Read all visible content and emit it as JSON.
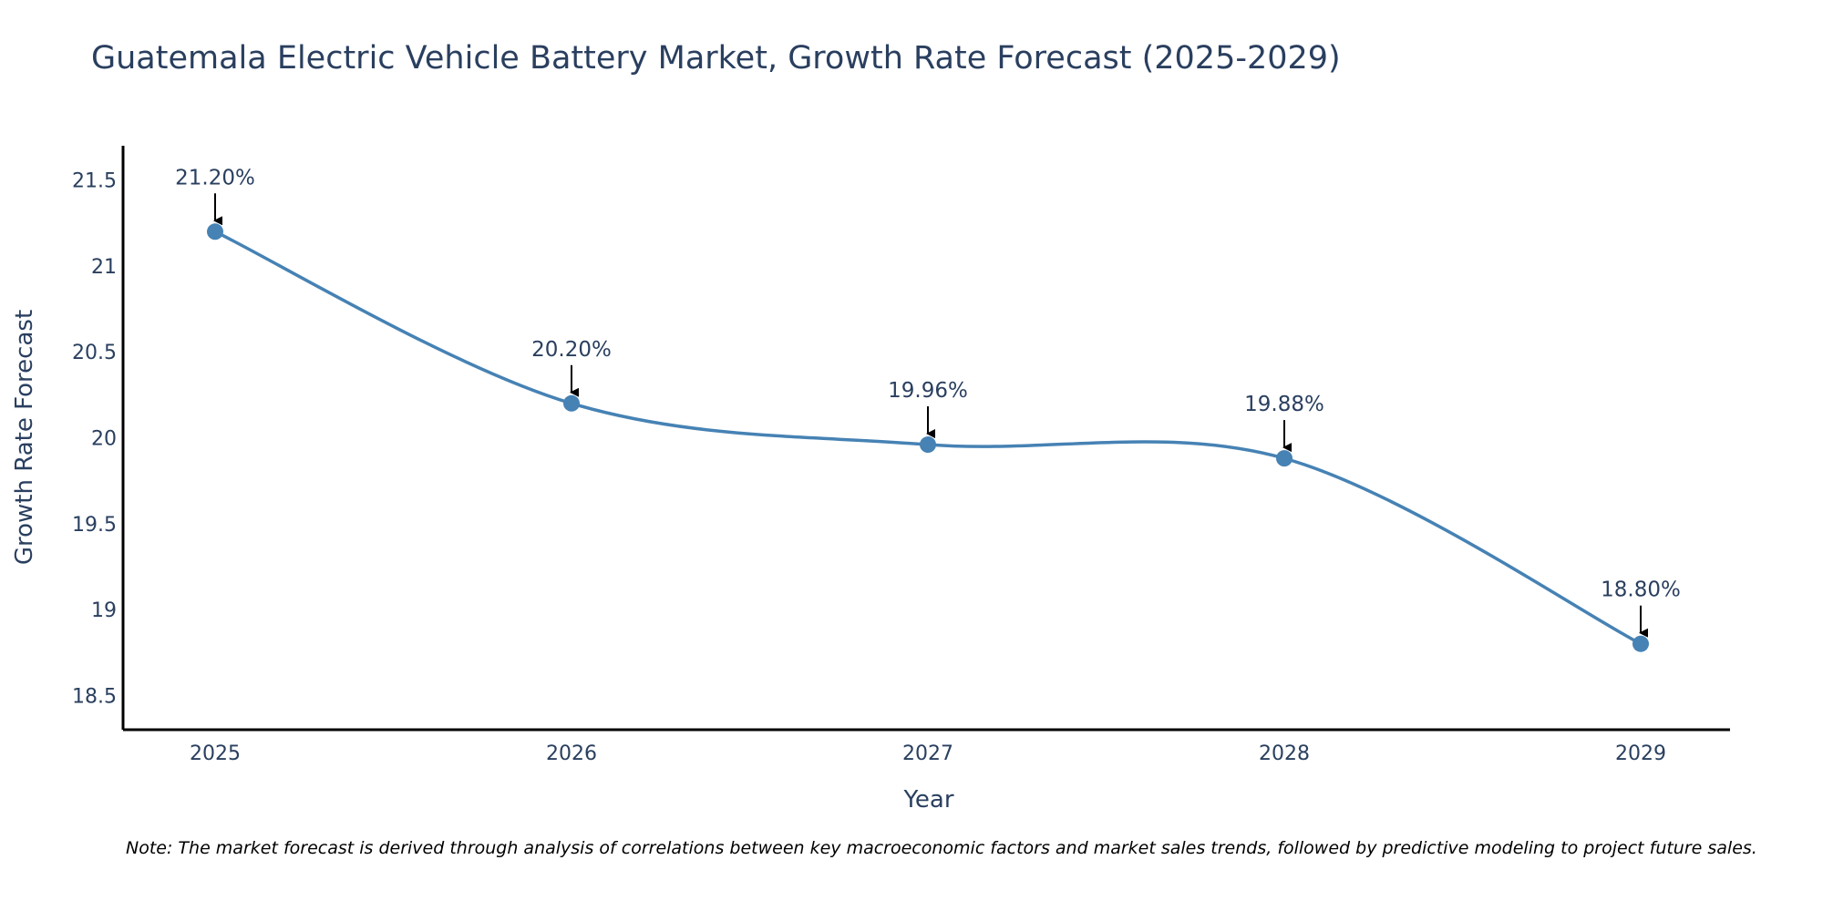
{
  "chart_data": {
    "type": "line",
    "title": "Guatemala Electric Vehicle Battery Market, Growth Rate Forecast (2025-2029)",
    "xlabel": "Year",
    "ylabel": "Growth Rate Forecast",
    "categories": [
      "2025",
      "2026",
      "2027",
      "2028",
      "2029"
    ],
    "values": [
      21.2,
      20.2,
      19.96,
      19.88,
      18.8
    ],
    "data_labels": [
      "21.20%",
      "20.20%",
      "19.96%",
      "19.88%",
      "18.80%"
    ],
    "yticks": [
      18.5,
      19,
      19.5,
      20,
      20.5,
      21,
      21.5
    ],
    "ytick_labels": [
      "18.5",
      "19",
      "19.5",
      "20",
      "20.5",
      "21",
      "21.5"
    ],
    "ylim": [
      18.3,
      21.7
    ],
    "grid": false,
    "line_shape": "spline",
    "colors": {
      "line": "#4682b4",
      "marker": "#4682b4",
      "text": "#2a3f5f",
      "axis": "#000000",
      "arrow": "#000000"
    }
  },
  "note": "Note: The market forecast is derived through analysis of correlations between key macroeconomic factors and market sales trends, followed by predictive modeling to project future sales."
}
